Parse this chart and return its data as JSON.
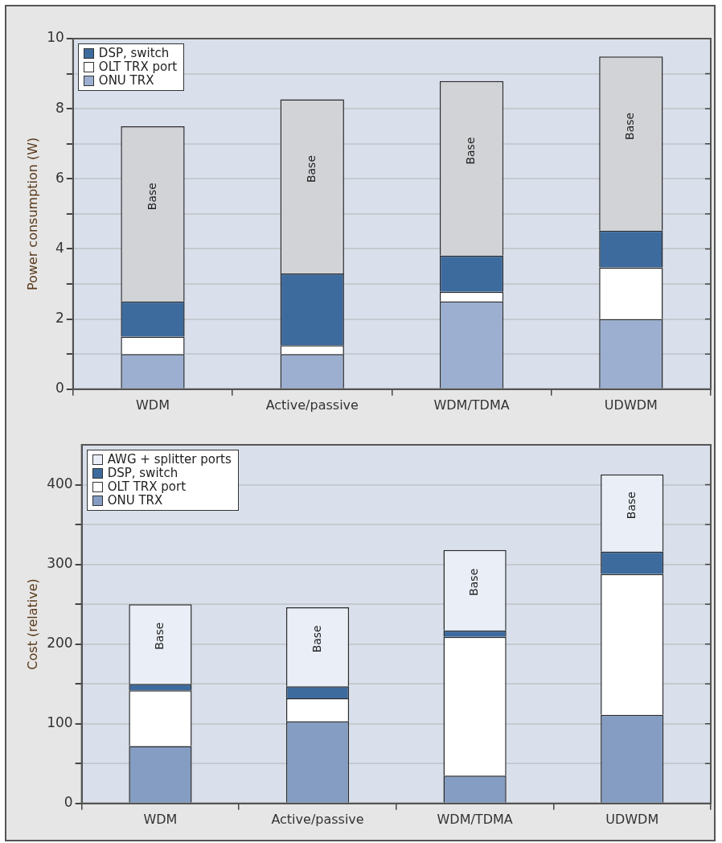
{
  "chart_data": [
    {
      "type": "bar",
      "stacked": true,
      "ylabel": "Power consumption (W)",
      "categories": [
        "WDM",
        "Active/passive",
        "WDM/TDMA",
        "UDWDM"
      ],
      "series": [
        {
          "name": "ONU TRX",
          "color": "#9cafd0",
          "values": [
            1.0,
            1.0,
            2.5,
            2.0
          ]
        },
        {
          "name": "OLT TRX port",
          "color": "#ffffff",
          "values": [
            0.5,
            0.25,
            0.28,
            1.47
          ]
        },
        {
          "name": "DSP, switch",
          "color": "#3d6b9e",
          "values": [
            1.0,
            2.05,
            1.03,
            1.05
          ]
        },
        {
          "color": "#d2d3d6",
          "values": [
            5.0,
            4.97,
            4.98,
            4.97
          ]
        }
      ],
      "ylim": [
        0,
        10
      ],
      "yticks": [
        0,
        {
          "value": 1,
          "label": null
        },
        2,
        {
          "value": 3,
          "label": null
        },
        4,
        {
          "value": 5,
          "label": null
        },
        6,
        {
          "value": 7,
          "label": null
        },
        8,
        {
          "value": 9,
          "label": null
        },
        10
      ],
      "grid": "y",
      "legend": "top left",
      "annotations": [
        "Base",
        "Base",
        "Base",
        "Base"
      ]
    },
    {
      "type": "bar",
      "stacked": true,
      "ylabel": "Cost (relative)",
      "categories": [
        "WDM",
        "Active/passive",
        "WDM/TDMA",
        "UDWDM"
      ],
      "series": [
        {
          "name": "ONU TRX",
          "color": "#859dc2",
          "values": [
            72,
            103,
            35,
            111
          ]
        },
        {
          "name": "OLT TRX port",
          "color": "#ffffff",
          "values": [
            70,
            29,
            174,
            177
          ]
        },
        {
          "name": "DSP, switch",
          "color": "#3d6b9e",
          "values": [
            8,
            15,
            8,
            28
          ]
        },
        {
          "name": "AWG + splitter ports",
          "color": "#e9eef7",
          "values": [
            100,
            99,
            101,
            97
          ]
        }
      ],
      "ylim": [
        0,
        450
      ],
      "yticks": [
        0,
        {
          "value": 50,
          "label": null
        },
        100,
        {
          "value": 150,
          "label": null
        },
        200,
        {
          "value": 250,
          "label": null
        },
        300,
        {
          "value": 350,
          "label": null
        },
        400
      ],
      "grid": "y",
      "legend": "top left",
      "annotations": [
        "Base",
        "Base",
        "Base",
        "Base"
      ]
    }
  ]
}
